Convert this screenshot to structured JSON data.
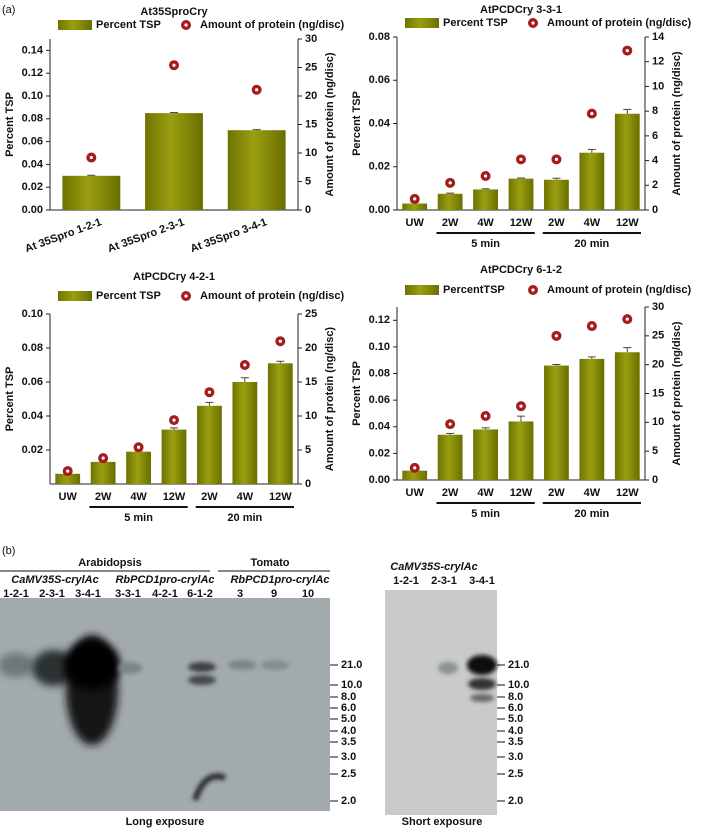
{
  "panel_a_label": "(a)",
  "chart_data": [
    {
      "type": "bar",
      "title": "At35SproCry",
      "categories": [
        "At 35Spro 1-2-1",
        "At 35Spro 2-3-1",
        "At 35Spro 3-4-1"
      ],
      "series": [
        {
          "name": "Percent TSP",
          "color": "#858a00",
          "values": [
            0.03,
            0.085,
            0.07
          ],
          "errors": [
            0.0005,
            0.0005,
            0.0005
          ]
        },
        {
          "name": "Amount of protein (ng/disc)",
          "color": "#a51c1c",
          "axis": "y2",
          "type": "scatter",
          "values": [
            9.2,
            25.4,
            21.1
          ]
        }
      ],
      "ylabel": "Percent TSP",
      "y2label": "Amount of protein (ng/disc)",
      "ylim": [
        0,
        0.15
      ],
      "yticks": [
        {
          "value": 0,
          "label": "0.00"
        },
        {
          "value": 0.02,
          "label": "0.02"
        },
        {
          "value": 0.04,
          "label": "0.04"
        },
        {
          "value": 0.06,
          "label": "0.06"
        },
        {
          "value": 0.08,
          "label": "0.08"
        },
        {
          "value": 0.1,
          "label": "0.10"
        },
        {
          "value": 0.12,
          "label": "0.12"
        },
        {
          "value": 0.14,
          "label": "0.14"
        }
      ],
      "y2lim": [
        0,
        30
      ],
      "y2ticks": [
        0,
        5,
        10,
        15,
        20,
        25,
        30
      ]
    },
    {
      "type": "bar",
      "title": "AtPCDCry 3-3-1",
      "categories": [
        "UW",
        "2W",
        "4W",
        "12W",
        "2W",
        "4W",
        "12W"
      ],
      "category_groups": [
        null,
        "5 min",
        "5 min",
        "5 min",
        "20 min",
        "20 min",
        "20 min"
      ],
      "series": [
        {
          "name": "Percent TSP",
          "color": "#858a00",
          "values": [
            0.003,
            0.0075,
            0.0095,
            0.0145,
            0.014,
            0.0265,
            0.0445
          ],
          "errors": [
            0.0005,
            0.0003,
            0.0003,
            0.0003,
            0.0007,
            0.0015,
            0.002
          ]
        },
        {
          "name": "Amount of protein (ng/disc)",
          "color": "#a51c1c",
          "axis": "y2",
          "type": "scatter",
          "values": [
            0.9,
            2.2,
            2.75,
            4.1,
            4.1,
            7.8,
            12.9
          ]
        }
      ],
      "ylabel": "Percent TSP",
      "y2label": "Amount of protein (ng/disc)",
      "ylim": [
        0,
        0.08
      ],
      "yticks": [
        {
          "value": 0,
          "label": "0.00"
        },
        {
          "value": 0.02,
          "label": "0.02"
        },
        {
          "value": 0.04,
          "label": "0.04"
        },
        {
          "value": 0.06,
          "label": "0.06"
        },
        {
          "value": 0.08,
          "label": "0.08"
        }
      ],
      "y2lim": [
        0,
        14
      ],
      "y2ticks": [
        0,
        2,
        4,
        6,
        8,
        10,
        12,
        14
      ]
    },
    {
      "type": "bar",
      "title": "AtPCDCry 4-2-1",
      "categories": [
        "UW",
        "2W",
        "4W",
        "12W",
        "2W",
        "4W",
        "12W"
      ],
      "category_groups": [
        null,
        "5 min",
        "5 min",
        "5 min",
        "20 min",
        "20 min",
        "20 min"
      ],
      "series": [
        {
          "name": "Percent TSP",
          "color": "#858a00",
          "values": [
            0.006,
            0.013,
            0.019,
            0.032,
            0.046,
            0.06,
            0.071
          ],
          "errors": [
            0.0004,
            0.0004,
            0.0005,
            0.001,
            0.002,
            0.0025,
            0.0012
          ]
        },
        {
          "name": "Amount of protein (ng/disc)",
          "color": "#a51c1c",
          "axis": "y2",
          "type": "scatter",
          "values": [
            1.9,
            3.8,
            5.4,
            9.4,
            13.5,
            17.5,
            21.0
          ]
        }
      ],
      "ylabel": "Percent TSP",
      "y2label": "Amount of protein (ng/disc)",
      "ylim": [
        0,
        0.1
      ],
      "yticks": [
        {
          "value": 0.02,
          "label": "0.02"
        },
        {
          "value": 0.04,
          "label": "0.04"
        },
        {
          "value": 0.06,
          "label": "0.06"
        },
        {
          "value": 0.08,
          "label": "0.08"
        },
        {
          "value": 0.1,
          "label": "0.10"
        }
      ],
      "y2lim": [
        0,
        25
      ],
      "y2ticks": [
        0,
        5,
        10,
        15,
        20,
        25
      ]
    },
    {
      "type": "bar",
      "title": "AtPCDCry 6-1-2",
      "categories": [
        "UW",
        "2W",
        "4W",
        "12W",
        "2W",
        "4W",
        "12W"
      ],
      "category_groups": [
        null,
        "5 min",
        "5 min",
        "5 min",
        "20 min",
        "20 min",
        "20 min"
      ],
      "series": [
        {
          "name": "PercentTSP",
          "color": "#858a00",
          "values": [
            0.007,
            0.034,
            0.038,
            0.044,
            0.086,
            0.091,
            0.096
          ],
          "errors": [
            0.0005,
            0.001,
            0.0012,
            0.004,
            0.0008,
            0.0015,
            0.0035
          ]
        },
        {
          "name": "Amount of protein (ng/disc)",
          "color": "#a51c1c",
          "axis": "y2",
          "type": "scatter",
          "values": [
            2.1,
            9.7,
            11.1,
            12.8,
            25.0,
            26.7,
            27.9
          ]
        }
      ],
      "ylabel": "Percent TSP",
      "y2label": "Amount of protein (ng/disc)",
      "ylim": [
        0,
        0.13
      ],
      "yticks": [
        {
          "value": 0,
          "label": "0.00"
        },
        {
          "value": 0.02,
          "label": "0.02"
        },
        {
          "value": 0.04,
          "label": "0.04"
        },
        {
          "value": 0.06,
          "label": "0.06"
        },
        {
          "value": 0.08,
          "label": "0.08"
        },
        {
          "value": 0.1,
          "label": "0.10"
        },
        {
          "value": 0.12,
          "label": "0.12"
        }
      ],
      "y2lim": [
        0,
        30
      ],
      "y2ticks": [
        0,
        5,
        10,
        15,
        20,
        25,
        30
      ]
    }
  ],
  "blot": {
    "label": "(b)",
    "species": [
      "Arabidopsis",
      "Tomato"
    ],
    "constructs": [
      "CaMV35S-crylAc",
      "RbPCD1pro-crylAc",
      "RbPCD1pro-crylAc"
    ],
    "lanes": [
      "1-2-1",
      "2-3-1",
      "3-4-1",
      "3-3-1",
      "4-2-1",
      "6-1-2",
      "3",
      "9",
      "10"
    ],
    "markers": [
      "21.0",
      "10.0",
      "8.0",
      "6.0",
      "5.0",
      "4.0",
      "3.5",
      "3.0",
      "2.5",
      "2.0"
    ],
    "caption": "Long exposure"
  },
  "blot_short": {
    "construct": "CaMV35S-crylAc",
    "lanes": [
      "1-2-1",
      "2-3-1",
      "3-4-1"
    ],
    "markers": [
      "21.0",
      "10.0",
      "8.0",
      "6.0",
      "5.0",
      "4.0",
      "3.5",
      "3.0",
      "2.5",
      "2.0"
    ],
    "caption": "Short exposure"
  }
}
